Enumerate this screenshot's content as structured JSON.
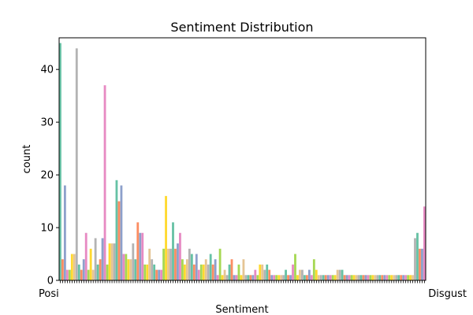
{
  "chart_data": {
    "type": "bar",
    "title": "Sentiment Distribution",
    "xlabel": "Sentiment",
    "ylabel": "count",
    "ylim": [
      0,
      46
    ],
    "yticks": [
      0,
      10,
      20,
      30,
      40
    ],
    "xtick_labels_visible_left": "Posi",
    "xtick_labels_visible_right": "Disgust",
    "palette": [
      "#66c2a5",
      "#fc8d62",
      "#8da0cb",
      "#e78ac3",
      "#a6d854",
      "#ffd92f",
      "#e5c494",
      "#b3b3b3"
    ],
    "values": [
      45,
      4,
      18,
      2,
      2,
      5,
      5,
      44,
      3,
      2,
      4,
      9,
      2,
      6,
      2,
      8,
      3,
      4,
      8,
      37,
      3,
      7,
      7,
      7,
      19,
      15,
      18,
      5,
      5,
      4,
      4,
      7,
      4,
      11,
      9,
      9,
      3,
      3,
      6,
      4,
      3,
      2,
      2,
      2,
      6,
      16,
      6,
      6,
      11,
      6,
      7,
      9,
      4,
      3,
      4,
      6,
      5,
      3,
      5,
      2,
      3,
      3,
      4,
      3,
      5,
      3,
      4,
      1,
      6,
      1,
      2,
      1,
      3,
      4,
      1,
      1,
      3,
      1,
      4,
      1,
      1,
      1,
      1,
      2,
      1,
      3,
      3,
      2,
      3,
      2,
      1,
      1,
      1,
      1,
      1,
      1,
      2,
      1,
      1,
      3,
      5,
      1,
      2,
      2,
      1,
      1,
      2,
      1,
      4,
      2,
      1,
      1,
      1,
      1,
      1,
      1,
      1,
      1,
      2,
      2,
      2,
      1,
      1,
      1,
      1,
      1,
      1,
      1,
      1,
      1,
      1,
      1,
      1,
      1,
      1,
      1,
      1,
      1,
      1,
      1,
      1,
      1,
      1,
      1,
      1,
      1,
      1,
      1,
      1,
      1,
      1,
      8,
      9,
      6,
      6,
      14
    ]
  }
}
